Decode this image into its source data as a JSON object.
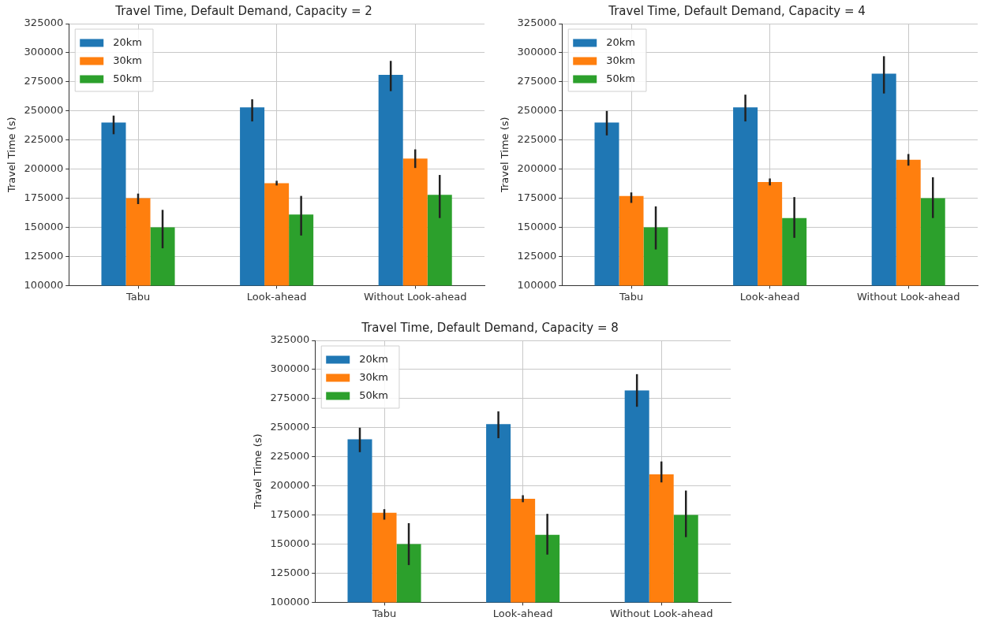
{
  "chart_data": [
    {
      "type": "bar",
      "title": "Travel Time, Default Demand, Capacity = 2",
      "ylabel": "Travel Time (s)",
      "categories": [
        "Tabu",
        "Look-ahead",
        "Without Look-ahead"
      ],
      "series": [
        {
          "name": "20km",
          "color": "#1f77b4",
          "values": [
            240000,
            253000,
            281000
          ],
          "errors": [
            [
              230000,
              246000
            ],
            [
              241000,
              260000
            ],
            [
              267000,
              293000
            ]
          ]
        },
        {
          "name": "30km",
          "color": "#ff7f0e",
          "values": [
            175000,
            188000,
            209000
          ],
          "errors": [
            [
              170000,
              179000
            ],
            [
              186000,
              190000
            ],
            [
              201000,
              217000
            ]
          ]
        },
        {
          "name": "50km",
          "color": "#2ca02c",
          "values": [
            150000,
            161000,
            178000
          ],
          "errors": [
            [
              132000,
              165000
            ],
            [
              143000,
              177000
            ],
            [
              158000,
              195000
            ]
          ]
        }
      ],
      "ylim": [
        100000,
        325000
      ],
      "yticks": [
        100000,
        125000,
        150000,
        175000,
        200000,
        225000,
        250000,
        275000,
        300000,
        325000
      ],
      "grid": true,
      "legend": "top left"
    },
    {
      "type": "bar",
      "title": "Travel Time, Default Demand, Capacity = 4",
      "ylabel": "Travel Time (s)",
      "categories": [
        "Tabu",
        "Look-ahead",
        "Without Look-ahead"
      ],
      "series": [
        {
          "name": "20km",
          "color": "#1f77b4",
          "values": [
            240000,
            253000,
            282000
          ],
          "errors": [
            [
              229000,
              250000
            ],
            [
              241000,
              264000
            ],
            [
              265000,
              297000
            ]
          ]
        },
        {
          "name": "30km",
          "color": "#ff7f0e",
          "values": [
            177000,
            189000,
            208000
          ],
          "errors": [
            [
              171000,
              180000
            ],
            [
              186000,
              192000
            ],
            [
              203000,
              213000
            ]
          ]
        },
        {
          "name": "50km",
          "color": "#2ca02c",
          "values": [
            150000,
            158000,
            175000
          ],
          "errors": [
            [
              131000,
              168000
            ],
            [
              141000,
              176000
            ],
            [
              158000,
              193000
            ]
          ]
        }
      ],
      "ylim": [
        100000,
        325000
      ],
      "yticks": [
        100000,
        125000,
        150000,
        175000,
        200000,
        225000,
        250000,
        275000,
        300000,
        325000
      ],
      "grid": true,
      "legend": "top left"
    },
    {
      "type": "bar",
      "title": "Travel Time, Default Demand, Capacity = 8",
      "ylabel": "Travel Time (s)",
      "categories": [
        "Tabu",
        "Look-ahead",
        "Without Look-ahead"
      ],
      "series": [
        {
          "name": "20km",
          "color": "#1f77b4",
          "values": [
            240000,
            253000,
            282000
          ],
          "errors": [
            [
              229000,
              250000
            ],
            [
              241000,
              264000
            ],
            [
              268000,
              296000
            ]
          ]
        },
        {
          "name": "30km",
          "color": "#ff7f0e",
          "values": [
            177000,
            189000,
            210000
          ],
          "errors": [
            [
              171000,
              180000
            ],
            [
              186000,
              192000
            ],
            [
              203000,
              221000
            ]
          ]
        },
        {
          "name": "50km",
          "color": "#2ca02c",
          "values": [
            150000,
            158000,
            175000
          ],
          "errors": [
            [
              132000,
              168000
            ],
            [
              141000,
              176000
            ],
            [
              156000,
              196000
            ]
          ]
        }
      ],
      "ylim": [
        100000,
        325000
      ],
      "yticks": [
        100000,
        125000,
        150000,
        175000,
        200000,
        225000,
        250000,
        275000,
        300000,
        325000
      ],
      "grid": true,
      "legend": "top left"
    }
  ]
}
